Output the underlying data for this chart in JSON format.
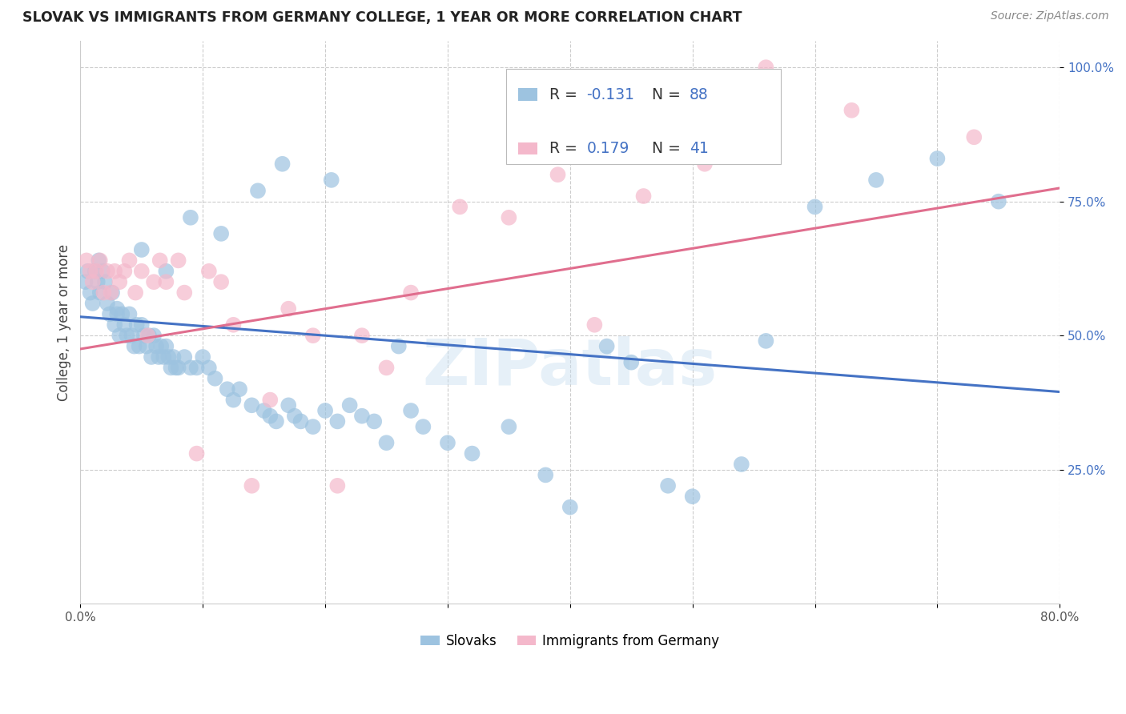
{
  "title": "SLOVAK VS IMMIGRANTS FROM GERMANY COLLEGE, 1 YEAR OR MORE CORRELATION CHART",
  "source": "Source: ZipAtlas.com",
  "ylabel": "College, 1 year or more",
  "watermark": "ZIPatlas",
  "xmin": 0.0,
  "xmax": 0.8,
  "ymin": 0.0,
  "ymax": 1.05,
  "xticks": [
    0.0,
    0.1,
    0.2,
    0.3,
    0.4,
    0.5,
    0.6,
    0.7,
    0.8
  ],
  "yticks": [
    0.25,
    0.5,
    0.75,
    1.0
  ],
  "ytick_labels": [
    "25.0%",
    "50.0%",
    "75.0%",
    "100.0%"
  ],
  "xtick_labels": [
    "0.0%",
    "",
    "",
    "",
    "",
    "",
    "",
    "",
    "80.0%"
  ],
  "blue_color": "#9dc3e0",
  "pink_color": "#f4b8cb",
  "line_blue": "#4472c4",
  "line_pink": "#e06e8e",
  "slovaks_x": [
    0.004,
    0.006,
    0.008,
    0.01,
    0.012,
    0.014,
    0.016,
    0.018,
    0.02,
    0.022,
    0.024,
    0.026,
    0.028,
    0.03,
    0.032,
    0.034,
    0.036,
    0.038,
    0.04,
    0.042,
    0.044,
    0.046,
    0.048,
    0.05,
    0.052,
    0.054,
    0.056,
    0.058,
    0.06,
    0.062,
    0.064,
    0.066,
    0.068,
    0.07,
    0.072,
    0.074,
    0.076,
    0.078,
    0.08,
    0.085,
    0.09,
    0.095,
    0.1,
    0.105,
    0.11,
    0.12,
    0.125,
    0.13,
    0.14,
    0.15,
    0.155,
    0.16,
    0.17,
    0.175,
    0.18,
    0.19,
    0.2,
    0.21,
    0.22,
    0.23,
    0.24,
    0.25,
    0.26,
    0.27,
    0.28,
    0.3,
    0.32,
    0.35,
    0.38,
    0.4,
    0.43,
    0.45,
    0.48,
    0.5,
    0.54,
    0.56,
    0.6,
    0.65,
    0.7,
    0.75,
    0.015,
    0.03,
    0.05,
    0.07,
    0.09,
    0.115,
    0.145,
    0.165,
    0.205
  ],
  "slovaks_y": [
    0.6,
    0.62,
    0.58,
    0.56,
    0.62,
    0.6,
    0.58,
    0.62,
    0.6,
    0.56,
    0.54,
    0.58,
    0.52,
    0.54,
    0.5,
    0.54,
    0.52,
    0.5,
    0.54,
    0.5,
    0.48,
    0.52,
    0.48,
    0.52,
    0.5,
    0.48,
    0.5,
    0.46,
    0.5,
    0.48,
    0.46,
    0.48,
    0.46,
    0.48,
    0.46,
    0.44,
    0.46,
    0.44,
    0.44,
    0.46,
    0.44,
    0.44,
    0.46,
    0.44,
    0.42,
    0.4,
    0.38,
    0.4,
    0.37,
    0.36,
    0.35,
    0.34,
    0.37,
    0.35,
    0.34,
    0.33,
    0.36,
    0.34,
    0.37,
    0.35,
    0.34,
    0.3,
    0.48,
    0.36,
    0.33,
    0.3,
    0.28,
    0.33,
    0.24,
    0.18,
    0.48,
    0.45,
    0.22,
    0.2,
    0.26,
    0.49,
    0.74,
    0.79,
    0.83,
    0.75,
    0.64,
    0.55,
    0.66,
    0.62,
    0.72,
    0.69,
    0.77,
    0.82,
    0.79
  ],
  "germany_x": [
    0.005,
    0.008,
    0.01,
    0.013,
    0.016,
    0.019,
    0.022,
    0.025,
    0.028,
    0.032,
    0.036,
    0.04,
    0.045,
    0.05,
    0.055,
    0.06,
    0.065,
    0.07,
    0.08,
    0.085,
    0.095,
    0.105,
    0.115,
    0.125,
    0.14,
    0.155,
    0.17,
    0.19,
    0.21,
    0.23,
    0.25,
    0.27,
    0.31,
    0.35,
    0.39,
    0.42,
    0.46,
    0.51,
    0.56,
    0.63,
    0.73
  ],
  "germany_y": [
    0.64,
    0.62,
    0.6,
    0.62,
    0.64,
    0.58,
    0.62,
    0.58,
    0.62,
    0.6,
    0.62,
    0.64,
    0.58,
    0.62,
    0.5,
    0.6,
    0.64,
    0.6,
    0.64,
    0.58,
    0.28,
    0.62,
    0.6,
    0.52,
    0.22,
    0.38,
    0.55,
    0.5,
    0.22,
    0.5,
    0.44,
    0.58,
    0.74,
    0.72,
    0.8,
    0.52,
    0.76,
    0.82,
    1.0,
    0.92,
    0.87
  ],
  "blue_line_x0": 0.0,
  "blue_line_x1": 0.8,
  "blue_line_y0": 0.535,
  "blue_line_y1": 0.395,
  "pink_line_x0": 0.0,
  "pink_line_x1": 0.8,
  "pink_line_y0": 0.475,
  "pink_line_y1": 0.775
}
